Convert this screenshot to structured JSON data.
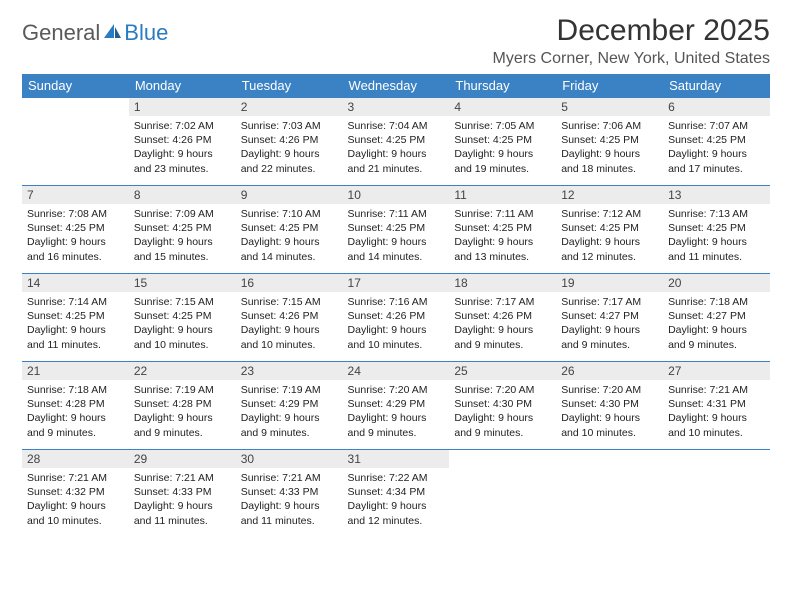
{
  "logo": {
    "general": "General",
    "blue": "Blue"
  },
  "title": "December 2025",
  "location": "Myers Corner, New York, United States",
  "colors": {
    "header_bg": "#3b82c4",
    "header_text": "#ffffff",
    "daynum_bg": "#ececec",
    "row_border": "#3b82c4",
    "logo_gray": "#5a5a5a",
    "logo_blue": "#2a7bbf"
  },
  "weekdays": [
    "Sunday",
    "Monday",
    "Tuesday",
    "Wednesday",
    "Thursday",
    "Friday",
    "Saturday"
  ],
  "weeks": [
    [
      null,
      {
        "n": "1",
        "sr": "Sunrise: 7:02 AM",
        "ss": "Sunset: 4:26 PM",
        "dl": "Daylight: 9 hours and 23 minutes."
      },
      {
        "n": "2",
        "sr": "Sunrise: 7:03 AM",
        "ss": "Sunset: 4:26 PM",
        "dl": "Daylight: 9 hours and 22 minutes."
      },
      {
        "n": "3",
        "sr": "Sunrise: 7:04 AM",
        "ss": "Sunset: 4:25 PM",
        "dl": "Daylight: 9 hours and 21 minutes."
      },
      {
        "n": "4",
        "sr": "Sunrise: 7:05 AM",
        "ss": "Sunset: 4:25 PM",
        "dl": "Daylight: 9 hours and 19 minutes."
      },
      {
        "n": "5",
        "sr": "Sunrise: 7:06 AM",
        "ss": "Sunset: 4:25 PM",
        "dl": "Daylight: 9 hours and 18 minutes."
      },
      {
        "n": "6",
        "sr": "Sunrise: 7:07 AM",
        "ss": "Sunset: 4:25 PM",
        "dl": "Daylight: 9 hours and 17 minutes."
      }
    ],
    [
      {
        "n": "7",
        "sr": "Sunrise: 7:08 AM",
        "ss": "Sunset: 4:25 PM",
        "dl": "Daylight: 9 hours and 16 minutes."
      },
      {
        "n": "8",
        "sr": "Sunrise: 7:09 AM",
        "ss": "Sunset: 4:25 PM",
        "dl": "Daylight: 9 hours and 15 minutes."
      },
      {
        "n": "9",
        "sr": "Sunrise: 7:10 AM",
        "ss": "Sunset: 4:25 PM",
        "dl": "Daylight: 9 hours and 14 minutes."
      },
      {
        "n": "10",
        "sr": "Sunrise: 7:11 AM",
        "ss": "Sunset: 4:25 PM",
        "dl": "Daylight: 9 hours and 14 minutes."
      },
      {
        "n": "11",
        "sr": "Sunrise: 7:11 AM",
        "ss": "Sunset: 4:25 PM",
        "dl": "Daylight: 9 hours and 13 minutes."
      },
      {
        "n": "12",
        "sr": "Sunrise: 7:12 AM",
        "ss": "Sunset: 4:25 PM",
        "dl": "Daylight: 9 hours and 12 minutes."
      },
      {
        "n": "13",
        "sr": "Sunrise: 7:13 AM",
        "ss": "Sunset: 4:25 PM",
        "dl": "Daylight: 9 hours and 11 minutes."
      }
    ],
    [
      {
        "n": "14",
        "sr": "Sunrise: 7:14 AM",
        "ss": "Sunset: 4:25 PM",
        "dl": "Daylight: 9 hours and 11 minutes."
      },
      {
        "n": "15",
        "sr": "Sunrise: 7:15 AM",
        "ss": "Sunset: 4:25 PM",
        "dl": "Daylight: 9 hours and 10 minutes."
      },
      {
        "n": "16",
        "sr": "Sunrise: 7:15 AM",
        "ss": "Sunset: 4:26 PM",
        "dl": "Daylight: 9 hours and 10 minutes."
      },
      {
        "n": "17",
        "sr": "Sunrise: 7:16 AM",
        "ss": "Sunset: 4:26 PM",
        "dl": "Daylight: 9 hours and 10 minutes."
      },
      {
        "n": "18",
        "sr": "Sunrise: 7:17 AM",
        "ss": "Sunset: 4:26 PM",
        "dl": "Daylight: 9 hours and 9 minutes."
      },
      {
        "n": "19",
        "sr": "Sunrise: 7:17 AM",
        "ss": "Sunset: 4:27 PM",
        "dl": "Daylight: 9 hours and 9 minutes."
      },
      {
        "n": "20",
        "sr": "Sunrise: 7:18 AM",
        "ss": "Sunset: 4:27 PM",
        "dl": "Daylight: 9 hours and 9 minutes."
      }
    ],
    [
      {
        "n": "21",
        "sr": "Sunrise: 7:18 AM",
        "ss": "Sunset: 4:28 PM",
        "dl": "Daylight: 9 hours and 9 minutes."
      },
      {
        "n": "22",
        "sr": "Sunrise: 7:19 AM",
        "ss": "Sunset: 4:28 PM",
        "dl": "Daylight: 9 hours and 9 minutes."
      },
      {
        "n": "23",
        "sr": "Sunrise: 7:19 AM",
        "ss": "Sunset: 4:29 PM",
        "dl": "Daylight: 9 hours and 9 minutes."
      },
      {
        "n": "24",
        "sr": "Sunrise: 7:20 AM",
        "ss": "Sunset: 4:29 PM",
        "dl": "Daylight: 9 hours and 9 minutes."
      },
      {
        "n": "25",
        "sr": "Sunrise: 7:20 AM",
        "ss": "Sunset: 4:30 PM",
        "dl": "Daylight: 9 hours and 9 minutes."
      },
      {
        "n": "26",
        "sr": "Sunrise: 7:20 AM",
        "ss": "Sunset: 4:30 PM",
        "dl": "Daylight: 9 hours and 10 minutes."
      },
      {
        "n": "27",
        "sr": "Sunrise: 7:21 AM",
        "ss": "Sunset: 4:31 PM",
        "dl": "Daylight: 9 hours and 10 minutes."
      }
    ],
    [
      {
        "n": "28",
        "sr": "Sunrise: 7:21 AM",
        "ss": "Sunset: 4:32 PM",
        "dl": "Daylight: 9 hours and 10 minutes."
      },
      {
        "n": "29",
        "sr": "Sunrise: 7:21 AM",
        "ss": "Sunset: 4:33 PM",
        "dl": "Daylight: 9 hours and 11 minutes."
      },
      {
        "n": "30",
        "sr": "Sunrise: 7:21 AM",
        "ss": "Sunset: 4:33 PM",
        "dl": "Daylight: 9 hours and 11 minutes."
      },
      {
        "n": "31",
        "sr": "Sunrise: 7:22 AM",
        "ss": "Sunset: 4:34 PM",
        "dl": "Daylight: 9 hours and 12 minutes."
      },
      null,
      null,
      null
    ]
  ]
}
